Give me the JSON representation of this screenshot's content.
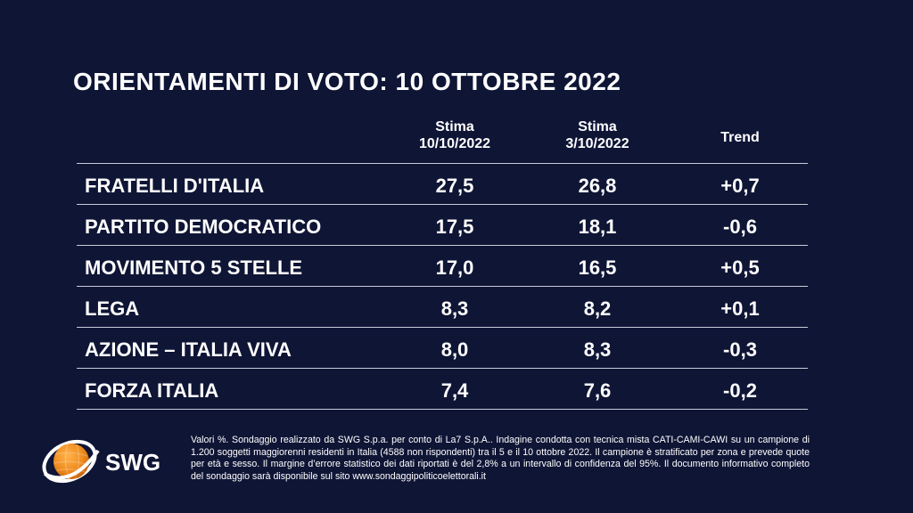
{
  "title": "ORIENTAMENTI DI VOTO: 10 OTTOBRE 2022",
  "chart_data": {
    "type": "table",
    "columns": [
      {
        "line1": "Stima",
        "line2": "10/10/2022"
      },
      {
        "line1": "Stima",
        "line2": "3/10/2022"
      },
      {
        "line1": "Trend",
        "line2": ""
      }
    ],
    "rows": [
      {
        "party": "FRATELLI D'ITALIA",
        "values": [
          "27,5",
          "26,8",
          "+0,7"
        ]
      },
      {
        "party": "PARTITO DEMOCRATICO",
        "values": [
          "17,5",
          "18,1",
          "-0,6"
        ]
      },
      {
        "party": "MOVIMENTO 5 STELLE",
        "values": [
          "17,0",
          "16,5",
          "+0,5"
        ]
      },
      {
        "party": "LEGA",
        "values": [
          "8,3",
          "8,2",
          "+0,1"
        ]
      },
      {
        "party": "AZIONE – ITALIA VIVA",
        "values": [
          "8,0",
          "8,3",
          "-0,3"
        ]
      },
      {
        "party": "FORZA ITALIA",
        "values": [
          "7,4",
          "7,6",
          "-0,2"
        ]
      }
    ]
  },
  "logo": {
    "text": "SWG",
    "colors": {
      "orange": "#f08c1e",
      "white": "#ffffff"
    }
  },
  "footnote": "Valori %. Sondaggio realizzato da SWG S.p.a. per conto di La7 S.p.A.. Indagine condotta con tecnica mista CATI-CAMI-CAWI su un campione di 1.200 soggetti maggiorenni residenti in Italia (4588 non rispondenti) tra il 5 e il 10 ottobre 2022. Il campione è stratificato per zona e prevede quote per età e sesso. Il margine d’errore statistico dei dati riportati è del 2,8% a un intervallo di confidenza del 95%. Il documento informativo completo del sondaggio sarà disponibile sul sito www.sondaggipoliticoelettorali.it",
  "colors": {
    "background": "#0f1535",
    "text": "#ffffff",
    "rule": "#c8ccd8"
  }
}
